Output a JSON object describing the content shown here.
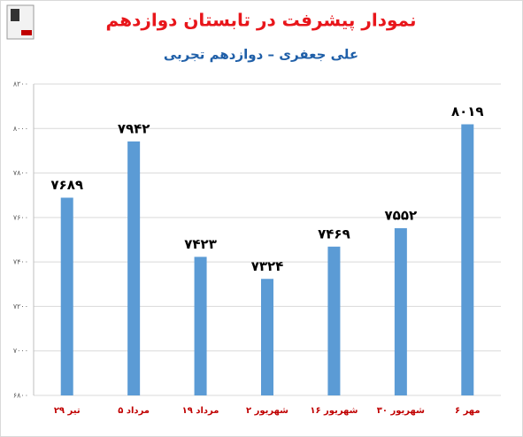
{
  "chart_data": {
    "type": "bar",
    "title": "نمودار پیشرفت در تابستان دوازدهم",
    "subtitle": "علی جعفری – دوازدهم تجربی",
    "categories": [
      "۲۹ تیر",
      "۵ مرداد",
      "۱۹ مرداد",
      "۲ شهریور",
      "۱۶ شهریور",
      "۳۰ شهریور",
      "۶ مهر"
    ],
    "values": [
      7689,
      7942,
      7423,
      7324,
      7469,
      7552,
      8019
    ],
    "value_labels": [
      "۷۶۸۹",
      "۷۹۴۲",
      "۷۴۲۳",
      "۷۳۲۴",
      "۷۴۶۹",
      "۷۵۵۲",
      "۸۰۱۹"
    ],
    "color": "#5b9bd5",
    "ylim": [
      6800,
      8200
    ],
    "yticks": [
      {
        "value": 6800,
        "label": "۶۸۰۰"
      },
      {
        "value": 7000,
        "label": "۷۰۰۰"
      },
      {
        "value": 7200,
        "label": "۷۲۰۰"
      },
      {
        "value": 7400,
        "label": "۷۴۰۰"
      },
      {
        "value": 7600,
        "label": "۷۶۰۰"
      },
      {
        "value": 7800,
        "label": "۷۸۰۰"
      },
      {
        "value": 8000,
        "label": "۸۰۰۰"
      },
      {
        "value": 8200,
        "label": "۸۲۰۰"
      }
    ],
    "grid": true
  }
}
